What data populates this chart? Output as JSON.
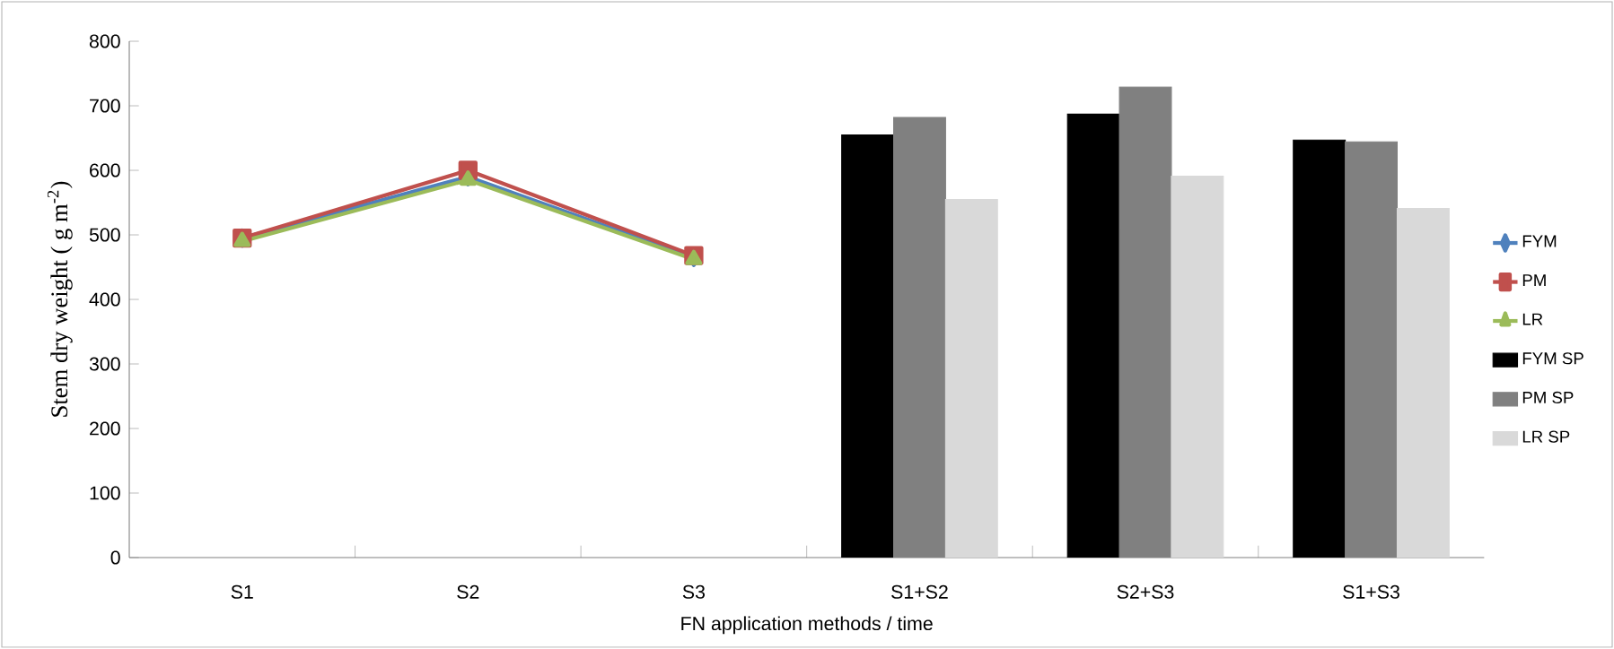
{
  "chart_data": {
    "type": "line",
    "xlabel": "FN application methods / time",
    "ylabel": "Stem dry weight ( g m$^{-2}$)",
    "categories": [
      "S1",
      "S2",
      "S3",
      "S1+S2",
      "S2+S3",
      "S1+S3"
    ],
    "ylim": [
      0,
      800
    ],
    "yticks": [
      0,
      100,
      200,
      300,
      400,
      500,
      600,
      700,
      800
    ],
    "grid": false,
    "legend": "right",
    "series": [
      {
        "name": "FYM",
        "marker": "diamond",
        "color": "#4f81bd",
        "values": [
          495,
          590,
          465,
          null,
          null,
          null
        ]
      },
      {
        "name": "PM",
        "marker": "square",
        "color": "#c0504d",
        "values": [
          495,
          600,
          468,
          null,
          null,
          null
        ]
      },
      {
        "name": "LR",
        "marker": "triangle",
        "color": "#9bbb59",
        "values": [
          490,
          585,
          462,
          null,
          null,
          null
        ]
      },
      {
        "name": "FYM SP",
        "type": "bar",
        "color": "#000000",
        "values": [
          null,
          null,
          null,
          655,
          687,
          647
        ]
      },
      {
        "name": "PM SP",
        "type": "bar",
        "color": "#808080",
        "values": [
          null,
          null,
          null,
          682,
          729,
          644
        ]
      },
      {
        "name": "LR SP",
        "type": "bar",
        "color": "#d9d9d9",
        "values": [
          null,
          null,
          null,
          555,
          591,
          541
        ]
      }
    ]
  }
}
